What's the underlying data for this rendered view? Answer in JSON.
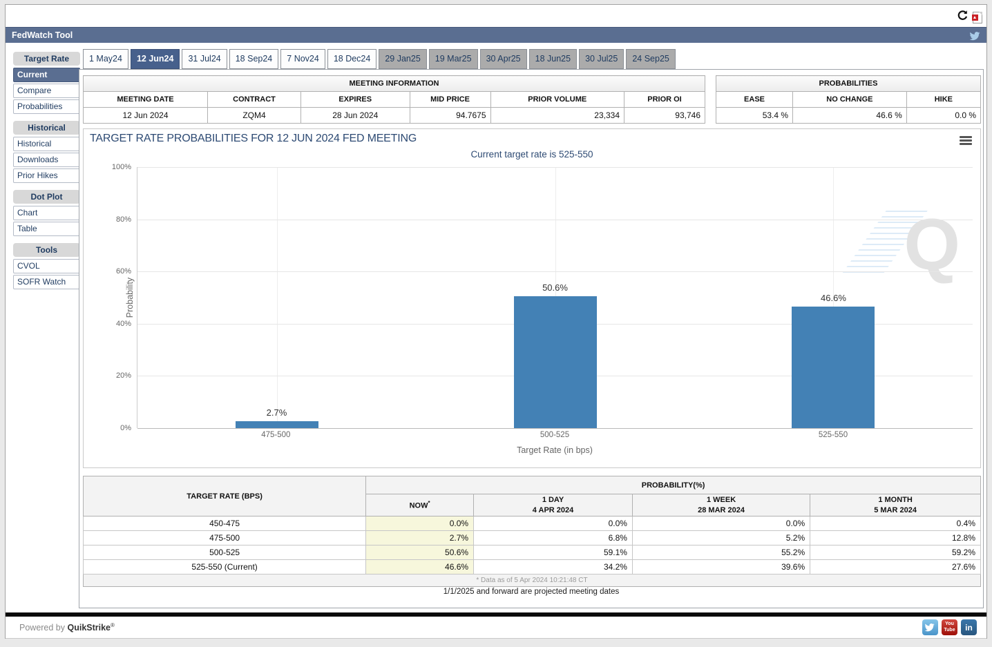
{
  "colors": {
    "header_bg": "#5a6e91",
    "active_tab": "#47608c",
    "bar": "#4381b5",
    "now_column": "#f7f7dc"
  },
  "titlebar": {
    "title": "FedWatch Tool"
  },
  "sidebar": {
    "groups": [
      {
        "label": "Target Rate",
        "items": [
          {
            "label": "Current",
            "selected": true
          },
          {
            "label": "Compare",
            "selected": false
          },
          {
            "label": "Probabilities",
            "selected": false
          }
        ]
      },
      {
        "label": "Historical",
        "items": [
          {
            "label": "Historical",
            "selected": false
          },
          {
            "label": "Downloads",
            "selected": false
          },
          {
            "label": "Prior Hikes",
            "selected": false
          }
        ]
      },
      {
        "label": "Dot Plot",
        "items": [
          {
            "label": "Chart",
            "selected": false
          },
          {
            "label": "Table",
            "selected": false
          }
        ]
      },
      {
        "label": "Tools",
        "items": [
          {
            "label": "CVOL",
            "selected": false
          },
          {
            "label": "SOFR Watch",
            "selected": false
          }
        ]
      }
    ]
  },
  "tabs": [
    {
      "label": "1 May24",
      "state": "normal"
    },
    {
      "label": "12 Jun24",
      "state": "active"
    },
    {
      "label": "31 Jul24",
      "state": "normal"
    },
    {
      "label": "18 Sep24",
      "state": "normal"
    },
    {
      "label": "7 Nov24",
      "state": "normal"
    },
    {
      "label": "18 Dec24",
      "state": "normal"
    },
    {
      "label": "29 Jan25",
      "state": "future"
    },
    {
      "label": "19 Mar25",
      "state": "future"
    },
    {
      "label": "30 Apr25",
      "state": "future"
    },
    {
      "label": "18 Jun25",
      "state": "future"
    },
    {
      "label": "30 Jul25",
      "state": "future"
    },
    {
      "label": "24 Sep25",
      "state": "future"
    }
  ],
  "meeting_info": {
    "title": "MEETING INFORMATION",
    "columns": [
      "MEETING DATE",
      "CONTRACT",
      "EXPIRES",
      "MID PRICE",
      "PRIOR VOLUME",
      "PRIOR OI"
    ],
    "values": [
      "12 Jun 2024",
      "ZQM4",
      "28 Jun 2024",
      "94.7675",
      "23,334",
      "93,746"
    ]
  },
  "probabilities_summary": {
    "title": "PROBABILITIES",
    "columns": [
      "EASE",
      "NO CHANGE",
      "HIKE"
    ],
    "values": [
      "53.4 %",
      "46.6 %",
      "0.0 %"
    ]
  },
  "chart_data": {
    "type": "bar",
    "title": "TARGET RATE PROBABILITIES FOR 12 JUN 2024 FED MEETING",
    "subtitle": "Current target rate is 525-550",
    "categories": [
      "475-500",
      "500-525",
      "525-550"
    ],
    "values": [
      2.7,
      50.6,
      46.6
    ],
    "labels": [
      "2.7%",
      "50.6%",
      "46.6%"
    ],
    "xlabel": "Target Rate (in bps)",
    "ylabel": "Probability",
    "ylim": [
      0,
      100
    ],
    "yticks": [
      "100%",
      "80%",
      "60%",
      "40%",
      "20%",
      "0%"
    ],
    "grid": true,
    "legend": false,
    "bar_color": "#4381b5"
  },
  "bottom_table": {
    "col1_header": "TARGET RATE (BPS)",
    "group_header": "PROBABILITY(%)",
    "sub_headers": {
      "now": "NOW",
      "now_sup": "*",
      "day1": "1 DAY",
      "day1_date": "4 APR 2024",
      "week1": "1 WEEK",
      "week1_date": "28 MAR 2024",
      "month1": "1 MONTH",
      "month1_date": "5 MAR 2024"
    },
    "rows": [
      {
        "rate": "450-475",
        "now": "0.0%",
        "day": "0.0%",
        "week": "0.0%",
        "month": "0.4%"
      },
      {
        "rate": "475-500",
        "now": "2.7%",
        "day": "6.8%",
        "week": "5.2%",
        "month": "12.8%"
      },
      {
        "rate": "500-525",
        "now": "50.6%",
        "day": "59.1%",
        "week": "55.2%",
        "month": "59.2%"
      },
      {
        "rate": "525-550 (Current)",
        "now": "46.6%",
        "day": "34.2%",
        "week": "39.6%",
        "month": "27.6%"
      }
    ],
    "footnote": "* Data as of 5 Apr 2024 10:21:48 CT"
  },
  "notes": {
    "projected": "1/1/2025 and forward are projected meeting dates"
  },
  "footer": {
    "powered_prefix": "Powered by ",
    "brand": "QuikStrike",
    "reg": "®",
    "youtube_line1": "You",
    "youtube_line2": "Tube",
    "linkedin_text": "in"
  }
}
